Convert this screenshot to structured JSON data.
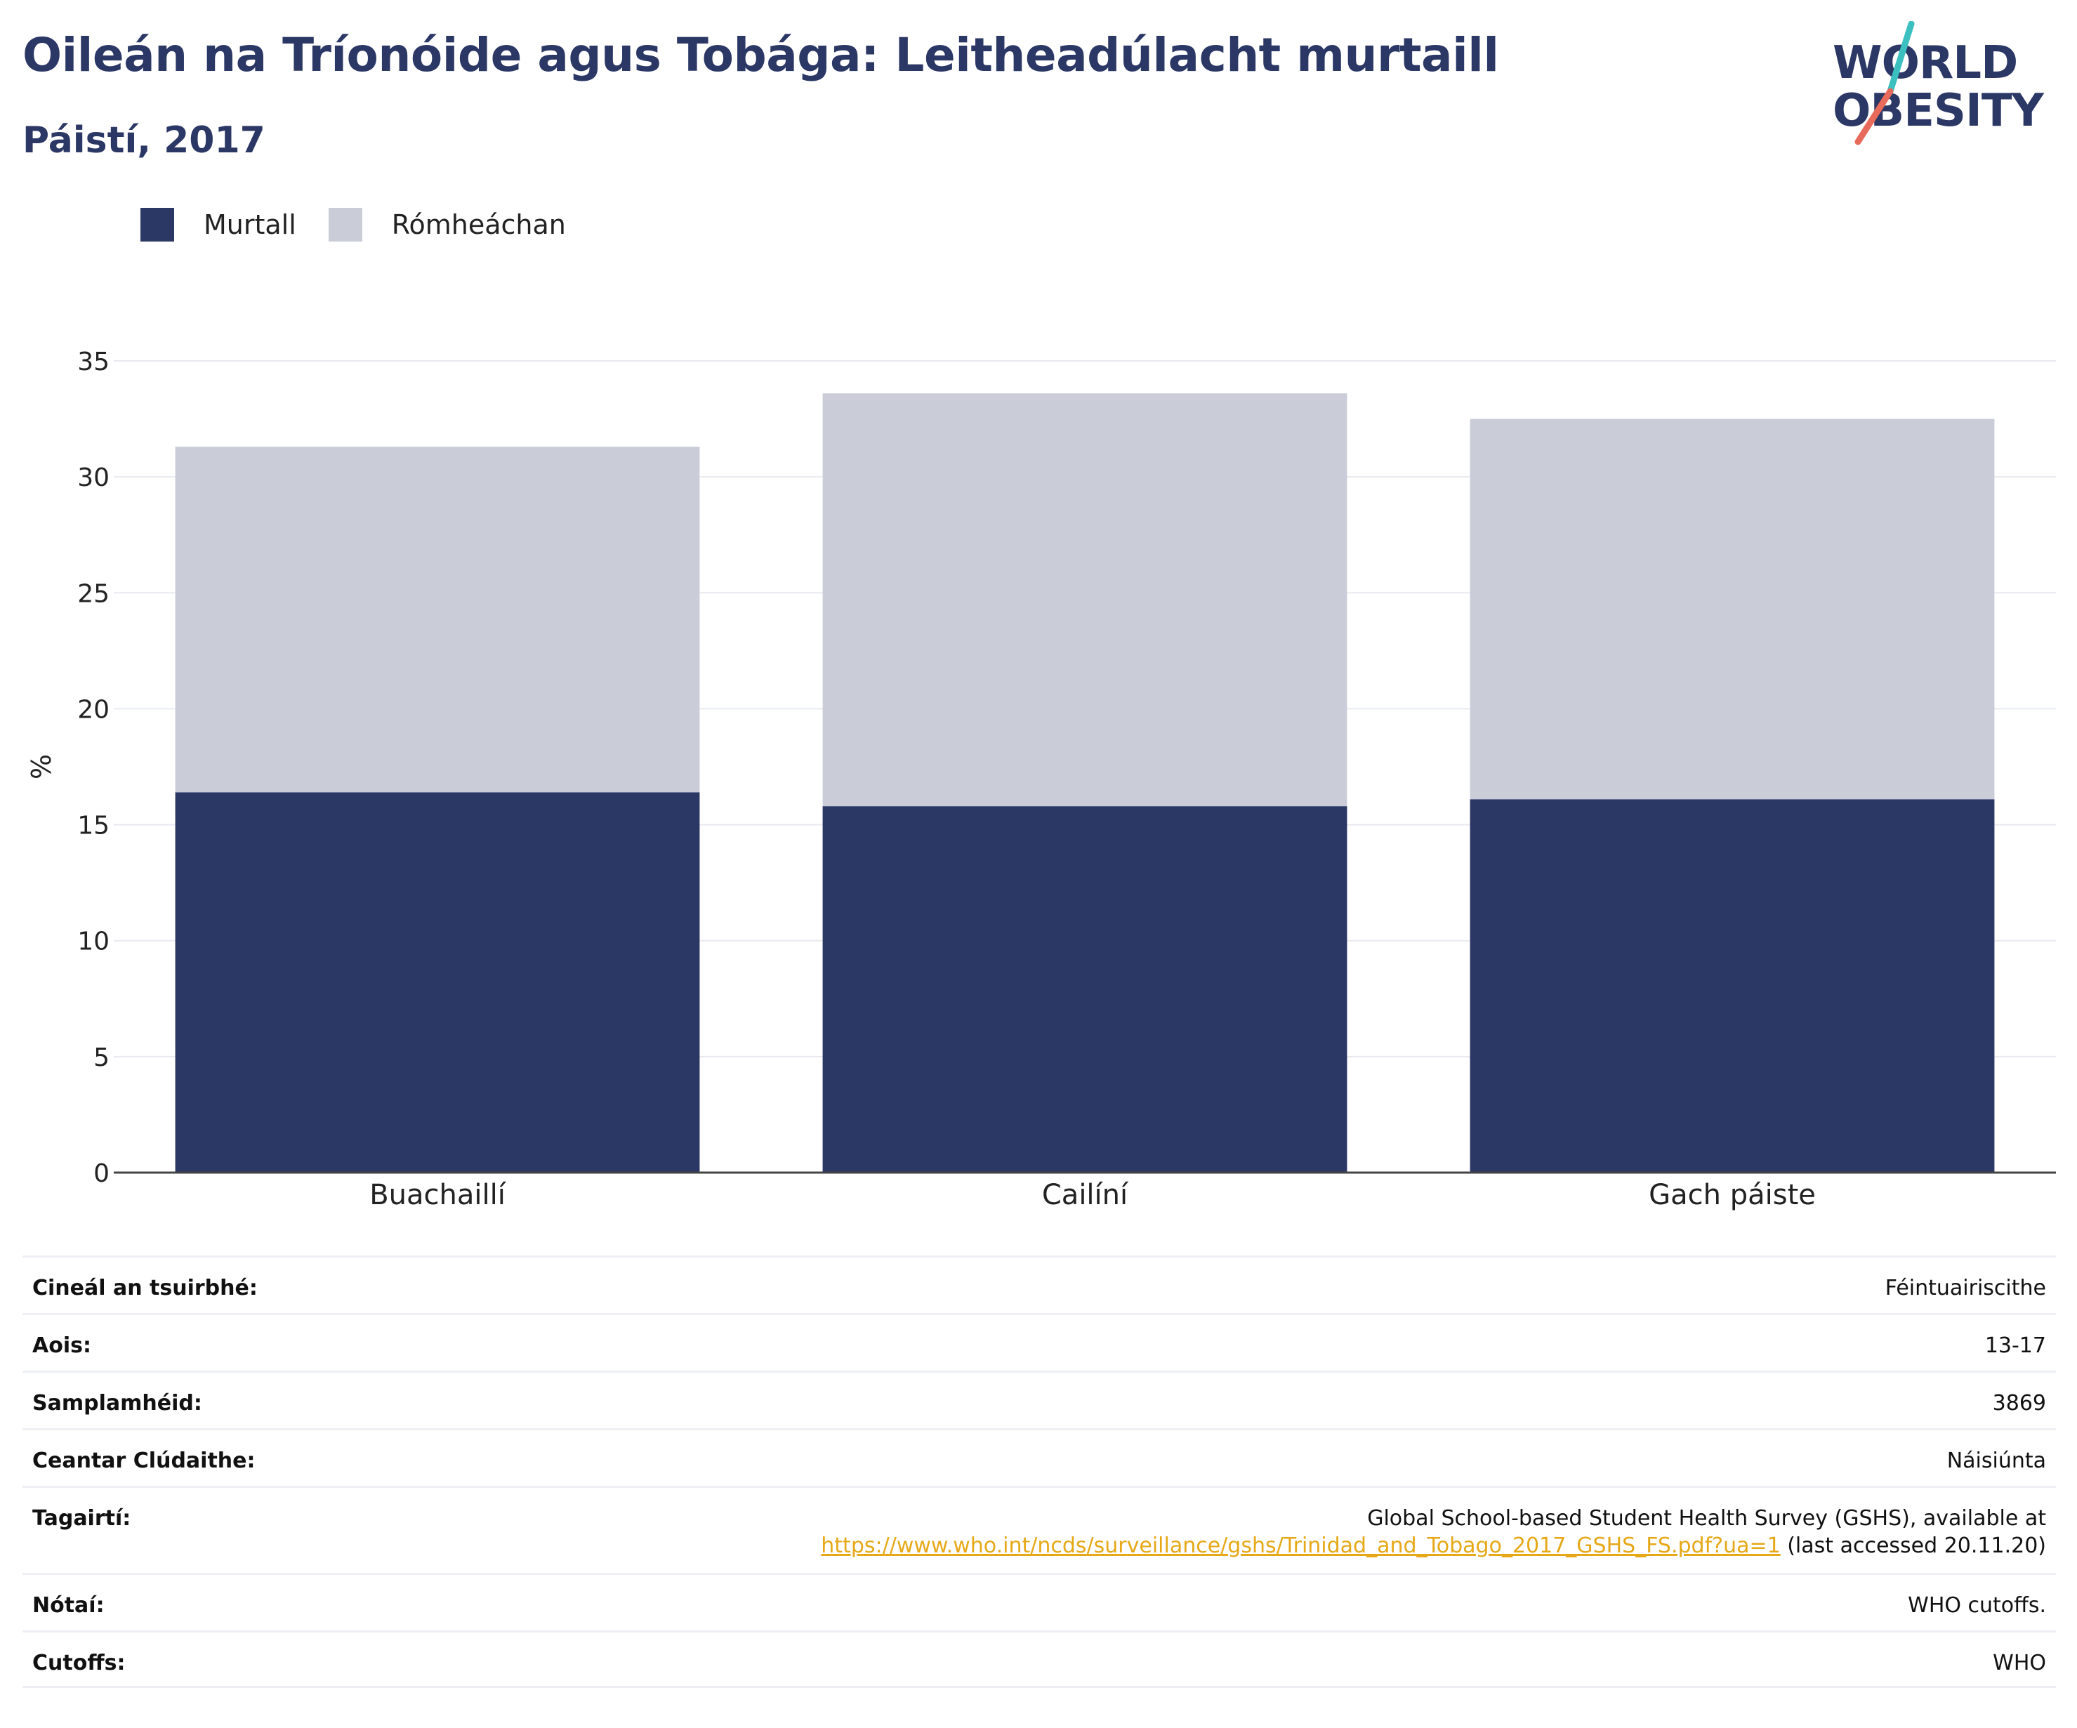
{
  "header": {
    "title": "Oileán na Tríonóide agus Tobága: Leitheadúlacht murtaill",
    "subtitle": "Páistí, 2017"
  },
  "logo": {
    "line1": "WORLD",
    "line2": "OBESITY",
    "accent_teal": "#3bbfbf",
    "accent_coral": "#e86a5a"
  },
  "legend": [
    {
      "label": "Murtall",
      "color": "#2b3765"
    },
    {
      "label": "Rómheáchan",
      "color": "#cacdd8"
    }
  ],
  "chart_data": {
    "type": "bar",
    "stacked": true,
    "categories": [
      "Buachaillí",
      "Cailíní",
      "Gach páiste"
    ],
    "series": [
      {
        "name": "Murtall",
        "color": "#2b3765",
        "values": [
          16.4,
          15.8,
          16.1
        ]
      },
      {
        "name": "Rómheáchan",
        "color": "#cacdd8",
        "values": [
          14.9,
          17.8,
          16.4
        ]
      }
    ],
    "ylabel": "%",
    "ylim": [
      0,
      35
    ],
    "yticks": [
      0,
      5,
      10,
      15,
      20,
      25,
      30,
      35
    ],
    "grid": true,
    "legend_position": "top-left"
  },
  "info_table": {
    "rows": [
      {
        "label": "Cineál an tsuirbhé:",
        "value": "Féintuairiscithe"
      },
      {
        "label": "Aois:",
        "value": "13-17"
      },
      {
        "label": "Samplamhéid:",
        "value": "3869"
      },
      {
        "label": "Ceantar Clúdaithe:",
        "value": "Náisiúnta"
      },
      {
        "label": "Tagairtí:",
        "value": "Global School-based Student Health Survey (GSHS), available at",
        "link": "https://www.who.int/ncds/surveillance/gshs/Trinidad_and_Tobago_2017_GSHS_FS.pdf?ua=1",
        "suffix": " (last accessed 20.11.20)"
      },
      {
        "label": "Nótaí:",
        "value": "WHO cutoffs."
      },
      {
        "label": "Cutoffs:",
        "value": "WHO"
      }
    ]
  }
}
